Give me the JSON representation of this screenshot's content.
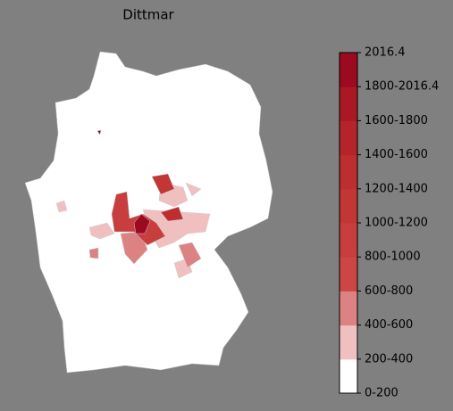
{
  "title": "Dittmar",
  "colorbar": {
    "labels": [
      "0-200",
      "200-400",
      "400-600",
      "600-800",
      "800-1000",
      "1000-1200",
      "1200-1400",
      "1400-1600",
      "1600-1800",
      "1800-2016.4",
      "2016.4"
    ],
    "colors": [
      "#ffffff",
      "#f0c0c0",
      "#dc8282",
      "#cc4646",
      "#c83e3e",
      "#c33636",
      "#bd2e30",
      "#b5242a",
      "#ab1825",
      "#9b0a1f"
    ]
  }
}
